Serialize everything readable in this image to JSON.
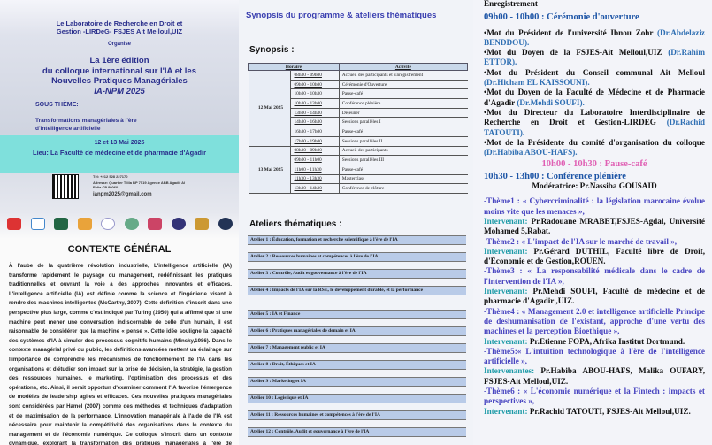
{
  "left": {
    "lab": "Le Laboratoire de Recherche en Droit et Gestion -LIRDeG- FSJES Ait Melloul,UIZ",
    "organise": "Organise",
    "edition": "La 1ère édition",
    "title1": "du colloque international sur l'IA et les",
    "title2": "Nouvelles Pratiques Managériales",
    "acronym": "IA-NPM 2025",
    "sous_theme_label": "SOUS THÈME:",
    "sous_theme": "Transformations managériales à l'ère d'intelligence artificielle",
    "dates": "12 et 13 Mai 2025",
    "lieu": "Lieu: La Faculté de médecine et de pharmacie d'Agadir",
    "tel": "Tél: +212 528 227170",
    "adresse": "Adresse: Quartier Tilila BP 7519 Agence ABB Agadir Al Fidia CP 80060",
    "email": "ianpm2025@gmail.com",
    "contexte_title": "CONTEXTE GÉNÉRAL",
    "contexte": "À l'aube de la quatrième révolution industrielle, L'intelligence artificielle (IA) transforme rapidement le paysage du management, redéfinissant les pratiques traditionnelles et ouvrant la voie à des approches innovantes et efficaces. L'intelligence artificielle (IA) est définie comme la science et l'ingénierie visant à rendre des machines intelligentes (McCarthy, 2007). Cette définition s'inscrit dans une perspective plus large, comme c'est indiqué par Turing (1950) qui a affirmé que si une machine peut mener une conversation indiscernable de celle d'un humain, il est raisonnable de considérer que la machine « pense ». Cette idée souligne la capacité des systèmes d'IA à simuler des processus cognitifs humains (Minsky,1986). Dans le contexte managérial privé ou public, les définitions avancées mettent un éclairage sur l'importance de comprendre les mécanismes de fonctionnement de l'IA dans les organisations et d'étudier son impact sur la prise de décision, la stratégie, la gestion des ressources humaines, le marketing, l'optimisation des processus et des opérations, etc. Ainsi, il serait opportun d'examiner comment l'IA favorise l'émergence de modèles de leadership agiles et efficaces. Ces nouvelles pratiques managériales sont considérées par Hamel (2007) comme des méthodes et techniques d'adaptation et de maximisation de la performance. L'innovation managériale à l'aide de l'IA est nécessaire pour maintenir la compétitivité des organisations dans le contexte du management et de l'économie numérique. Ce colloque s'inscrit dans un contexte dynamique, explorant la transformation des pratiques managériales à l'ère de l'intelligence artificielle (IA), Ce qui implique des"
  },
  "mid": {
    "title": "Synopsis du programme & ateliers thématiques",
    "synopsis_label": "Synopsis :",
    "headers": [
      "Horaire",
      "Activité"
    ],
    "days": [
      {
        "day": "12 Mai 2025",
        "rows": [
          [
            "08h30 - 09h00",
            "Accueil des participants et Enregistrement"
          ],
          [
            "09h00 - 10h00",
            "Cérémonie d'Ouverture"
          ],
          [
            "10h00 - 10h30",
            "Pause-café"
          ],
          [
            "10h30 - 13h00",
            "Conférence plénière"
          ],
          [
            "13h00 - 14h30",
            "Déjeuner"
          ],
          [
            "14h30 - 16h30",
            "Sessions parallèles I"
          ],
          [
            "16h30 - 17h00",
            "Pause-café"
          ],
          [
            "17h00 - 19h00",
            "Sessions parallèles II"
          ]
        ]
      },
      {
        "day": "13 Mai 2025",
        "rows": [
          [
            "08h30 - 09h00",
            "Accueil des participants"
          ],
          [
            "09h00 - 11h00",
            "Sessions parallèles III"
          ],
          [
            "11h00 - 11h30",
            "Pause-café"
          ],
          [
            "11h30 - 13h30",
            "Masterclass"
          ],
          [
            "13h30 - 14h30",
            "Conférence de clôture"
          ]
        ]
      }
    ],
    "ateliers_label": "Ateliers thématiques :",
    "ateliers": [
      "Atelier 1 : Éducation, formation et recherche scientifique à l'ère de l'IA",
      "Atelier 2 : Ressources humaines et compétences à l'ère de l'IA",
      "Atelier 3 : Contrôle, Audit et gouvernance à l'ère de l'IA",
      "Atelier 4 : Impacts de l'IA sur la RSE, le développement durable, et la performance",
      "Atelier 5 : IA et Finance",
      "Atelier 6 : Pratiques managériales de demain et IA",
      "Atelier 7 : Management public et IA",
      "Atelier 8 : Droit, Éthiques et IA",
      "Atelier 9 : Marketing et IA",
      "Atelier 10 : Logistique et IA",
      "Atelier 11 : Ressources humaines et compétences à l'ère de l'IA",
      "Atelier 12 : Contrôle, Audit et gouvernance à l'ère de l'IA"
    ]
  },
  "right": {
    "enreg": "Enregistrement",
    "ouverture": "09h00 - 10h00 : Cérémonie d'ouverture",
    "mots": [
      [
        "•Mot du Président de l'université Ibnou Zohr ",
        "(Dr.Abdelaziz BENDDOU)."
      ],
      [
        "•Mot du Doyen de la FSJES-Ait Melloul,UIZ ",
        "(Dr.Rahim ETTOR)."
      ],
      [
        "•Mot du Président du Conseil communal Ait Melloul ",
        "(Dr.Hicham EL KAISSOUNI)."
      ],
      [
        "•Mot du Doyen de la Faculté de Médecine et de Pharmacie d'Agadir ",
        "(Dr.Mehdi SOUFI)."
      ],
      [
        "•Mot du Directeur du Laboratoire Interdisciplinaire de Recherche en Droit et Gestion-LIRDEG ",
        "(Dr.Rachid TATOUTI)."
      ],
      [
        "•Mot de la Présidente du comité d'organisation du colloque ",
        "(Dr.Habiba ABOU-HAFS)."
      ]
    ],
    "pause": "10h00 - 10h30 : Pause-café",
    "pleniere": "10h30 - 13h00 : Conférence plénière",
    "moderatrice": "Modératrice: Pr.Nassiba GOUSAID",
    "themes": [
      {
        "theme": "-Thème1 : « Cybercriminalité : la législation marocaine évolue moins vite que les menaces »,",
        "label": "Intervenant:",
        "speaker": " Pr.Radouane MRABET,FSJES-Agdal, Université Mohamed 5,Rabat."
      },
      {
        "theme": "-Thème2 : « L'impact de l'IA sur le marché de travail »,",
        "label": "Intervenant:",
        "speaker": " Pr.Gérard DUTHIL, Faculté libre de Droit, d'Économie et de Gestion,ROUEN."
      },
      {
        "theme": "-Thème3 : « La responsabilité médicale dans le cadre de l'intervention de l'IA »,",
        "label": "Intervenant:",
        "speaker": " Pr.Mehdi SOUFI, Faculté de médecine et de pharmacie d'Agadir ,UIZ."
      },
      {
        "theme": "-Thème4 : « Management 2.0 et intelligence artificielle Principe de deshumanisation de l'existant, approche d'une vertu des machines et la perception Bioethique »,",
        "label": "Intervenant:",
        "speaker": " Pr.Etienne FOPA, Afrika Institut Dortmund."
      },
      {
        "theme": "-Thème5:« L'intuition technologique à l'ère de l'intelligence artificielle »,",
        "label": "Intervenantes:",
        "speaker": " Pr.Habiba ABOU-HAFS, Malika OUFARY, FSJES-Ait Melloul,UIZ."
      },
      {
        "theme": "-Thème6 : « L'économie numérique et la Fintech : impacts et perspectives »,",
        "label": "Intervenant:",
        "speaker": " Pr.Rachid TATOUTI, FSJES-Ait Melloul,UIZ."
      }
    ]
  },
  "colors": {
    "navy": "#2a2f8c",
    "teal_band": "#7fe0dc",
    "table_blue": "#b9cbe8",
    "time_blue": "#1d55a6",
    "pause_pink": "#e060b4"
  }
}
